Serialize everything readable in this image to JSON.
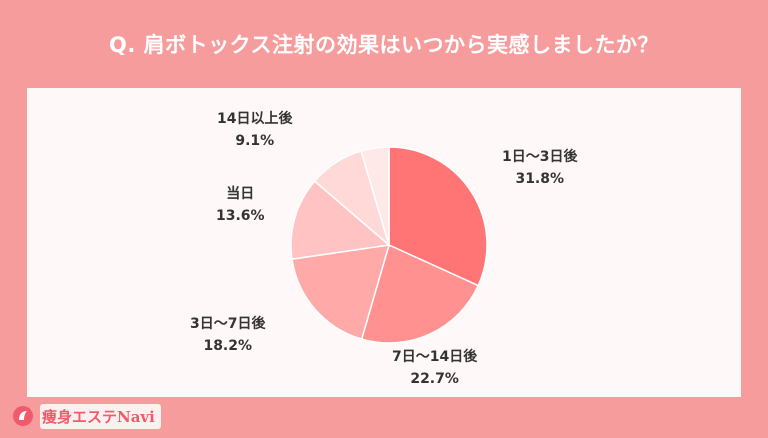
{
  "title": "Q. 肩ボトックス注射の効果はいつから実感しましたか？",
  "brand": {
    "logo_text": "痩身エステNavi"
  },
  "chart_data": {
    "type": "pie",
    "title": "Q. 肩ボトックス注射の効果はいつから実感しましたか？",
    "slices": [
      {
        "label": "1日〜3日後",
        "value": 31.8,
        "display": "31.8%",
        "color": "#ff7474"
      },
      {
        "label": "7日〜14日後",
        "value": 22.7,
        "display": "22.7%",
        "color": "#ff9191"
      },
      {
        "label": "3日〜7日後",
        "value": 18.2,
        "display": "18.2%",
        "color": "#ffa9a9"
      },
      {
        "label": "当日",
        "value": 13.6,
        "display": "13.6%",
        "color": "#ffc3c3"
      },
      {
        "label": "14日以上後",
        "value": 9.1,
        "display": "9.1%",
        "color": "#ffd8d8"
      },
      {
        "label": "",
        "value": 4.6,
        "display": "",
        "color": "#ffe8e8"
      }
    ]
  },
  "colors": {
    "background": "#f79c9c",
    "card": "#fff8f8",
    "text": "#333333",
    "brand": "#f15a6a"
  }
}
